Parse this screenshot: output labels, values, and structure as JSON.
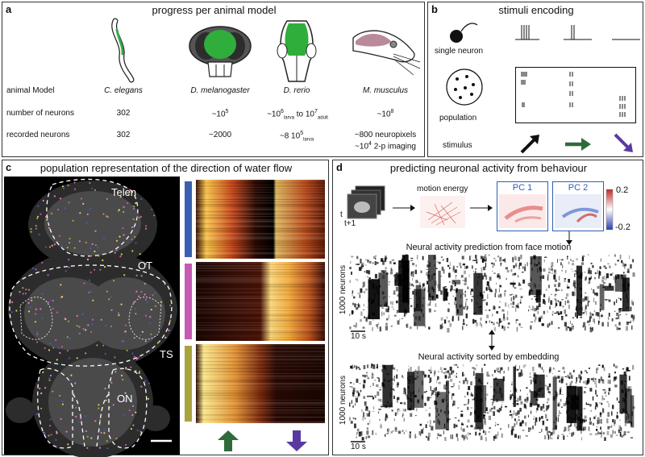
{
  "panel_a": {
    "label": "a",
    "title": "progress per animal model",
    "row_headers": [
      "animal Model",
      "number of neurons",
      "recorded neurons"
    ],
    "species": [
      "C. elegans",
      "D. melanogaster",
      "D. rerio",
      "M. musculus"
    ],
    "num_neurons": {
      "c_elegans": "302",
      "d_melanogaster": "~10",
      "d_melanogaster_exp": "5",
      "d_rerio_a": "~10",
      "d_rerio_a_exp": "6",
      "d_rerio_a_sub": "larva",
      "d_rerio_to": " to 10",
      "d_rerio_b_exp": "7",
      "d_rerio_b_sub": "adult",
      "m_musculus": "~10",
      "m_musculus_exp": "8"
    },
    "recorded": {
      "c_elegans": "302",
      "d_melanogaster": "~2000",
      "d_rerio": "~8 10",
      "d_rerio_exp": "5",
      "d_rerio_sub": "larva",
      "m_musculus_1": "~800 neuropixels",
      "m_musculus_2a": "~10",
      "m_musculus_2exp": "4",
      "m_musculus_2b": " 2-p imaging"
    }
  },
  "panel_b": {
    "label": "b",
    "title": "stimuli encoding",
    "single_neuron": "single neuron",
    "population": "population",
    "stimulus": "stimulus"
  },
  "panel_c": {
    "label": "c",
    "title": "population representation of the direction of water flow",
    "regions": [
      "Telen",
      "OT",
      "TS",
      "ON"
    ],
    "colors": {
      "blue": "#3b5fb0",
      "pink": "#c45ab3",
      "olive": "#a8a33d",
      "green": "#2f6b3a",
      "purple": "#5a3aa0"
    }
  },
  "panel_d": {
    "label": "d",
    "title": "predicting neuronal activity from behaviour",
    "motion_energy": "motion energy",
    "pc1": "PC 1",
    "pc2": "PC 2",
    "cbar_max": "0.2",
    "cbar_min": "-0.2",
    "t_label": "t",
    "t1_label": "t+1",
    "raster1_title": "Neural activity prediction from face motion",
    "raster2_title": "Neural activity sorted by embedding",
    "ylabel": "1000 neurons",
    "scale": "10 s"
  }
}
